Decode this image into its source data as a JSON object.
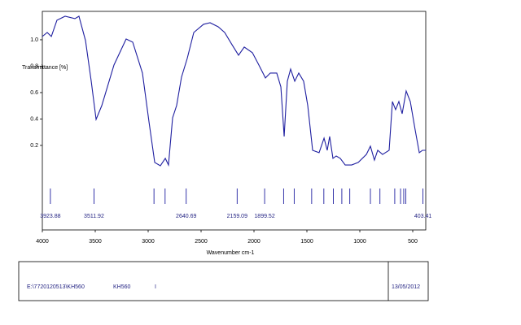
{
  "chart_data": {
    "type": "line",
    "xlabel": "Wavenumber cm-1",
    "ylabel": "Transmittance [%]",
    "color": "#1f1fa0",
    "xlim": [
      4000,
      377
    ],
    "xticks": [
      4000,
      3500,
      3000,
      2500,
      2000,
      1500,
      1000,
      500
    ],
    "ylim": [
      -0.44,
      1.215
    ],
    "yticks": [
      0.2,
      0.4,
      0.6,
      0.8,
      {
        "value": 1,
        "label": "1.0"
      }
    ],
    "x": [
      4000,
      3954,
      3915,
      3862,
      3785,
      3692,
      3654,
      3592,
      3538,
      3492,
      3438,
      3323,
      3208,
      3146,
      3054,
      2992,
      2938,
      2885,
      2838,
      2808,
      2769,
      2731,
      2685,
      2631,
      2569,
      2477,
      2415,
      2338,
      2277,
      2208,
      2146,
      2092,
      2015,
      1954,
      1892,
      1846,
      1785,
      1746,
      1715,
      1685,
      1654,
      1615,
      1577,
      1531,
      1492,
      1446,
      1385,
      1338,
      1308,
      1285,
      1254,
      1223,
      1185,
      1138,
      1077,
      1015,
      938,
      900,
      862,
      831,
      785,
      723,
      692,
      662,
      631,
      600,
      562,
      523,
      477,
      438,
      408,
      377
    ],
    "values": [
      1.025,
      1.055,
      1.025,
      1.148,
      1.178,
      1.16,
      1.178,
      0.994,
      0.686,
      0.397,
      0.502,
      0.809,
      1.006,
      0.982,
      0.748,
      0.378,
      0.071,
      0.046,
      0.102,
      0.052,
      0.409,
      0.502,
      0.717,
      0.858,
      1.055,
      1.117,
      1.129,
      1.098,
      1.055,
      0.963,
      0.883,
      0.945,
      0.902,
      0.809,
      0.711,
      0.748,
      0.748,
      0.643,
      0.268,
      0.686,
      0.778,
      0.686,
      0.748,
      0.686,
      0.502,
      0.163,
      0.145,
      0.255,
      0.163,
      0.268,
      0.102,
      0.12,
      0.102,
      0.052,
      0.052,
      0.071,
      0.132,
      0.194,
      0.089,
      0.163,
      0.132,
      0.163,
      0.532,
      0.471,
      0.532,
      0.44,
      0.612,
      0.532,
      0.317,
      0.145,
      0.163,
      0.163
    ],
    "peaks": {
      "x": [
        3923.88,
        3511.92,
        2945,
        2840,
        2640.69,
        2159.09,
        1899.52,
        1720,
        1620,
        1455,
        1340,
        1250,
        1170,
        1095,
        900,
        810,
        670,
        615,
        585,
        565,
        403.41
      ],
      "labels": [
        "3923.88",
        "3511.92",
        null,
        null,
        "2640.69",
        "2159.09",
        "1899.52",
        null,
        null,
        null,
        null,
        null,
        null,
        null,
        null,
        null,
        null,
        null,
        null,
        null,
        "403.41"
      ]
    }
  },
  "footer": {
    "file": "E:\\7720120513\\KH560",
    "sample": "KH560",
    "mark": "I",
    "date": "13/05/2012"
  }
}
